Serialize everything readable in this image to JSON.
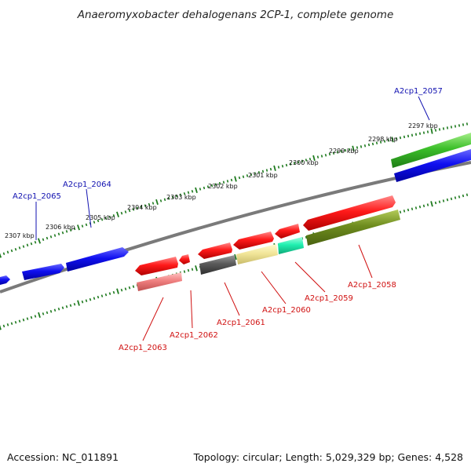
{
  "title": "Anaeromyxobacter dehalogenans 2CP-1, complete genome",
  "footer": {
    "accession": "Accession: NC_011891",
    "summary": "Topology: circular; Length: 5,029,329 bp; Genes: 4,528"
  },
  "colors": {
    "backbone": "#7a7a7a",
    "tick": "#1e7a1e",
    "forward_label": "#1010b0",
    "reverse_label": "#d01010"
  },
  "kbp_labels": [
    "2297 kbp",
    "2298 kbp",
    "2299 kbp",
    "2300 kbp",
    "2301 kbp",
    "2302 kbp",
    "2303 kbp",
    "2304 kbp",
    "2305 kbp",
    "2306 kbp",
    "2307 kbp"
  ],
  "gene_labels": [
    {
      "name": "A2cp1_2057",
      "strand": "forward"
    },
    {
      "name": "A2cp1_2064",
      "strand": "forward"
    },
    {
      "name": "A2cp1_2065",
      "strand": "forward"
    },
    {
      "name": "A2cp1_2058",
      "strand": "reverse"
    },
    {
      "name": "A2cp1_2059",
      "strand": "reverse"
    },
    {
      "name": "A2cp1_2060",
      "strand": "reverse"
    },
    {
      "name": "A2cp1_2061",
      "strand": "reverse"
    },
    {
      "name": "A2cp1_2062",
      "strand": "reverse"
    },
    {
      "name": "A2cp1_2063",
      "strand": "reverse"
    }
  ]
}
